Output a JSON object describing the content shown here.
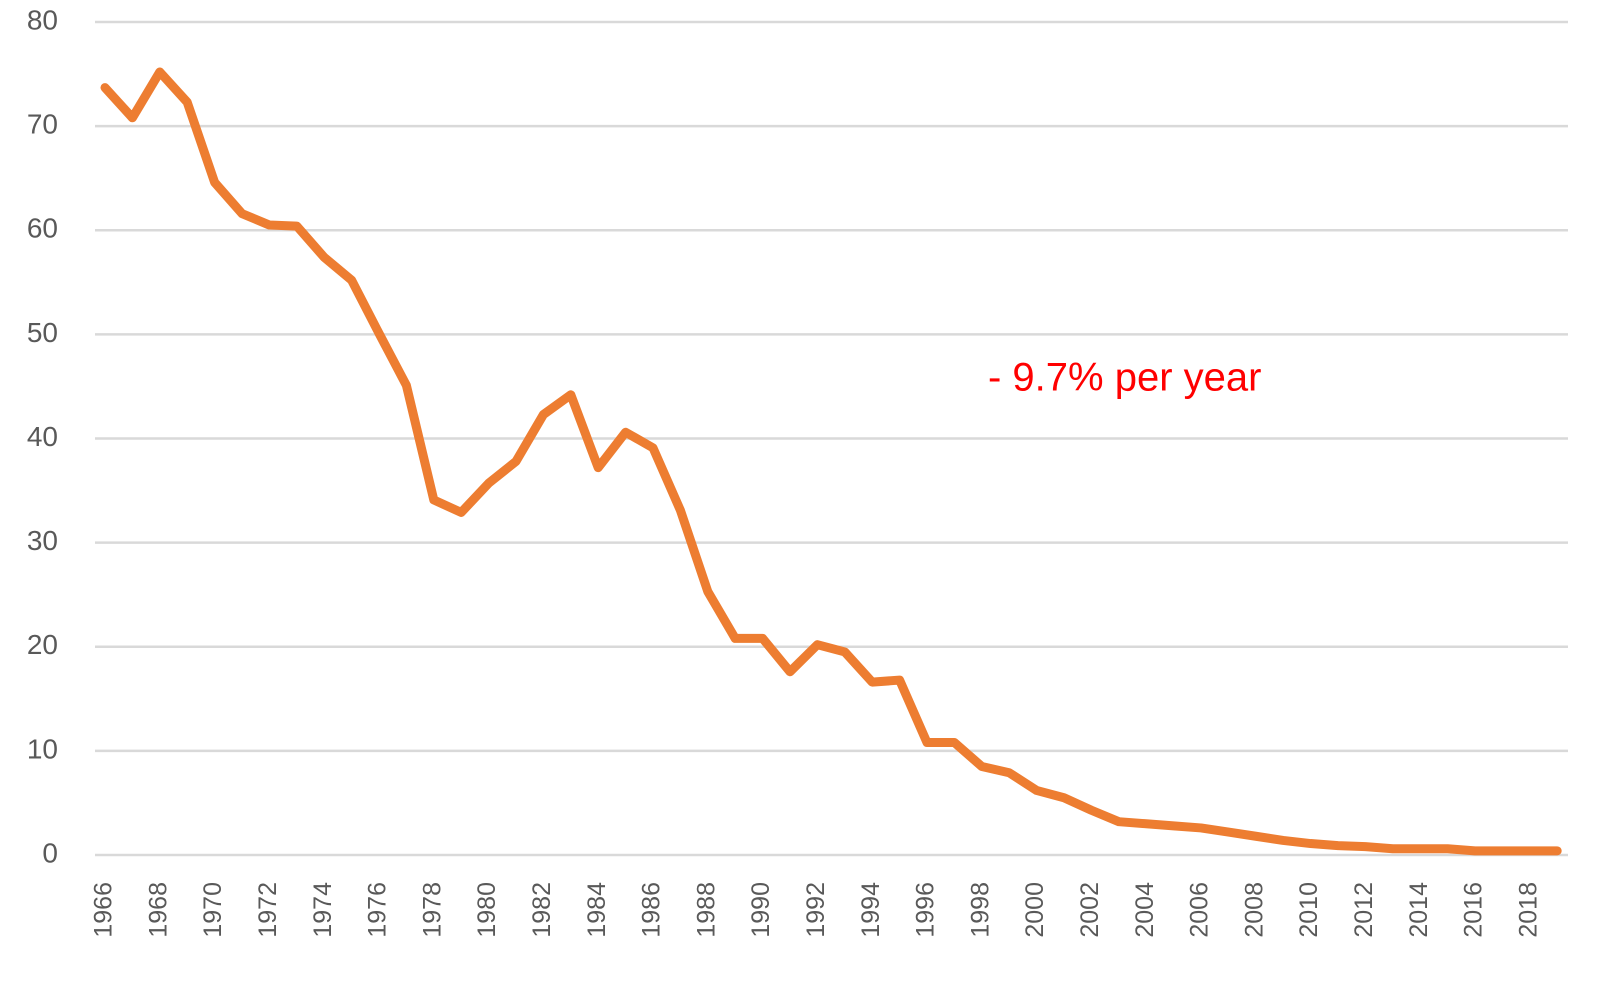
{
  "chart_data": {
    "type": "line",
    "categories": [
      "1966",
      null,
      "1968",
      null,
      "1970",
      null,
      "1972",
      null,
      "1974",
      null,
      "1976",
      null,
      "1978",
      null,
      "1980",
      null,
      "1982",
      null,
      "1984",
      null,
      "1986",
      null,
      "1988",
      null,
      "1990",
      null,
      "1992",
      null,
      "1994",
      null,
      "1996",
      null,
      "1998",
      null,
      "2000",
      null,
      "2002",
      null,
      "2004",
      null,
      "2006",
      null,
      "2008",
      null,
      "2010",
      null,
      "2012",
      null,
      "2014",
      null,
      "2016",
      null,
      "2018",
      null
    ],
    "values": [
      73.7,
      70.8,
      75.2,
      72.3,
      64.6,
      61.6,
      60.5,
      60.4,
      57.4,
      55.2,
      50.1,
      45.1,
      34.1,
      32.9,
      35.7,
      37.8,
      42.3,
      44.2,
      37.2,
      40.6,
      39.1,
      33.1,
      25.3,
      20.8,
      20.8,
      17.6,
      20.2,
      19.5,
      16.6,
      16.8,
      10.8,
      10.8,
      8.5,
      7.9,
      6.2,
      5.5,
      4.3,
      3.2,
      3.0,
      2.8,
      2.6,
      2.2,
      1.8,
      1.4,
      1.1,
      0.9,
      0.8,
      0.6,
      0.6,
      0.6,
      0.4,
      0.4,
      0.4,
      0.4
    ],
    "color": "#ed7d31",
    "ylim": [
      0,
      80
    ],
    "yticks": [
      0,
      10,
      20,
      30,
      40,
      50,
      60,
      70,
      80
    ],
    "grid": true,
    "annotation": "- 9.7% per year"
  }
}
